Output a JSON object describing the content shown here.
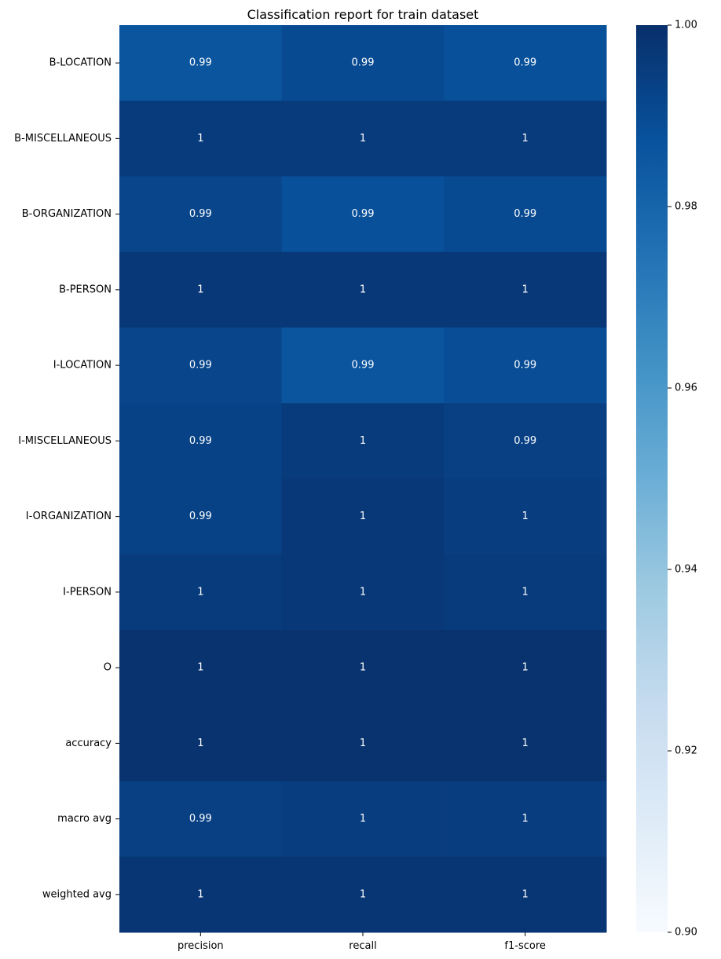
{
  "chart_data": {
    "type": "heatmap",
    "title": "Classification report for train dataset",
    "rows": [
      "B-LOCATION",
      "B-MISCELLANEOUS",
      "B-ORGANIZATION",
      "B-PERSON",
      "I-LOCATION",
      "I-MISCELLANEOUS",
      "I-ORGANIZATION",
      "I-PERSON",
      "O",
      "accuracy",
      "macro avg",
      "weighted avg"
    ],
    "columns": [
      "precision",
      "recall",
      "f1-score"
    ],
    "values": [
      [
        0.986,
        0.99,
        0.988
      ],
      [
        0.996,
        0.996,
        0.996
      ],
      [
        0.992,
        0.988,
        0.99
      ],
      [
        0.997,
        0.997,
        0.997
      ],
      [
        0.992,
        0.986,
        0.989
      ],
      [
        0.993,
        0.996,
        0.994
      ],
      [
        0.993,
        0.997,
        0.995
      ],
      [
        0.996,
        0.997,
        0.996
      ],
      [
        0.999,
        0.999,
        0.999
      ],
      [
        0.999,
        0.999,
        0.999
      ],
      [
        0.994,
        0.995,
        0.995
      ],
      [
        0.998,
        0.998,
        0.998
      ]
    ],
    "annotations": [
      [
        "0.99",
        "0.99",
        "0.99"
      ],
      [
        "1",
        "1",
        "1"
      ],
      [
        "0.99",
        "0.99",
        "0.99"
      ],
      [
        "1",
        "1",
        "1"
      ],
      [
        "0.99",
        "0.99",
        "0.99"
      ],
      [
        "0.99",
        "1",
        "0.99"
      ],
      [
        "0.99",
        "1",
        "1"
      ],
      [
        "1",
        "1",
        "1"
      ],
      [
        "1",
        "1",
        "1"
      ],
      [
        "1",
        "1",
        "1"
      ],
      [
        "0.99",
        "1",
        "1"
      ],
      [
        "1",
        "1",
        "1"
      ]
    ],
    "colormap": "Blues",
    "vmin": 0.9,
    "vmax": 1.0,
    "colorbar_ticks": [
      "0.90",
      "0.92",
      "0.94",
      "0.96",
      "0.98",
      "1.00"
    ],
    "colorbar_tick_values": [
      0.9,
      0.92,
      0.94,
      0.96,
      0.98,
      1.0
    ]
  }
}
